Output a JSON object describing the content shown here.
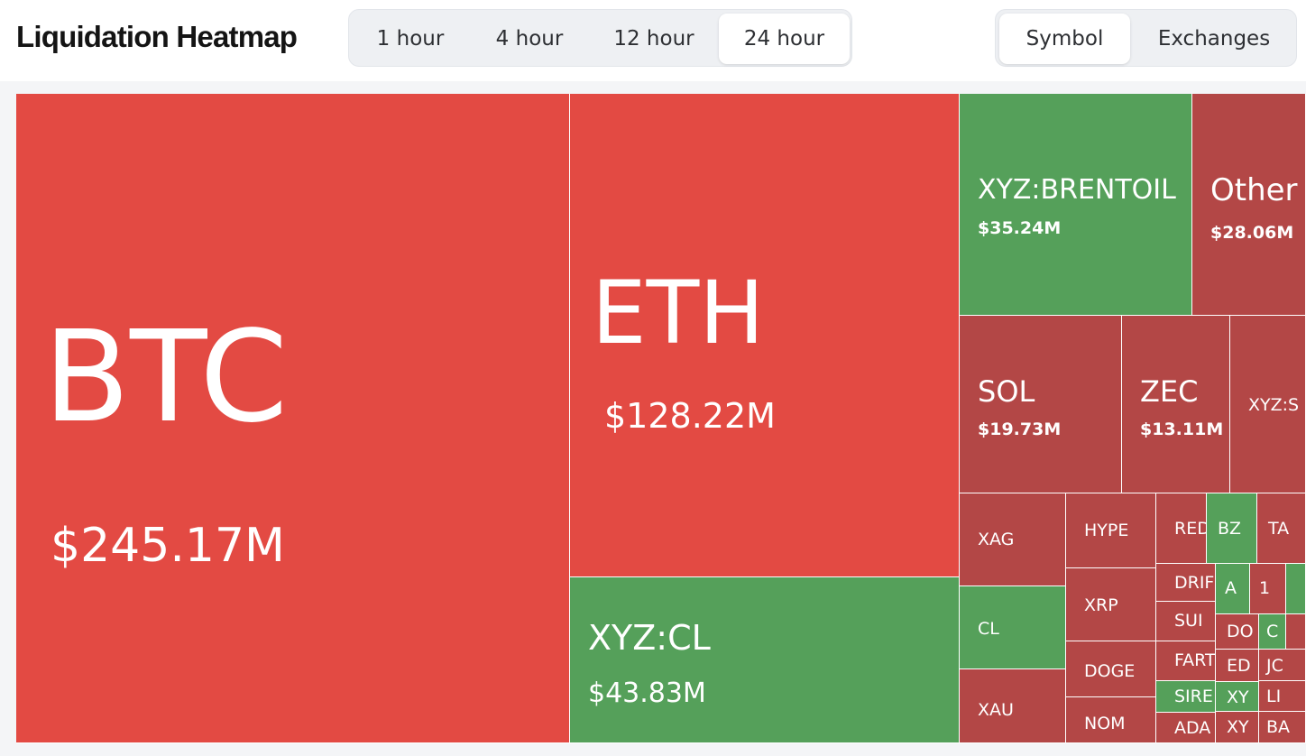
{
  "header": {
    "title": "Liquidation Heatmap"
  },
  "time_tabs": [
    {
      "label": "1 hour",
      "active": false
    },
    {
      "label": "4 hour",
      "active": false
    },
    {
      "label": "12 hour",
      "active": false
    },
    {
      "label": "24 hour",
      "active": true
    }
  ],
  "view_tabs": [
    {
      "label": "Symbol",
      "active": true
    },
    {
      "label": "Exchanges",
      "active": false
    }
  ],
  "colors": {
    "long": "#e34a43",
    "short": "#55a05a",
    "mixed": "#b34746"
  },
  "chart_data": {
    "type": "treemap",
    "unit": "USD",
    "tiles": [
      {
        "symbol": "BTC",
        "value_label": "$245.17M",
        "value": 245170000,
        "color": "long"
      },
      {
        "symbol": "ETH",
        "value_label": "$128.22M",
        "value": 128220000,
        "color": "long"
      },
      {
        "symbol": "XYZ:CL",
        "value_label": "$43.83M",
        "value": 43830000,
        "color": "short"
      },
      {
        "symbol": "XYZ:BRENTOIL",
        "value_label": "$35.24M",
        "value": 35240000,
        "color": "short"
      },
      {
        "symbol": "Other",
        "value_label": "$28.06M",
        "value": 28060000,
        "color": "mixed"
      },
      {
        "symbol": "SOL",
        "value_label": "$19.73M",
        "value": 19730000,
        "color": "mixed"
      },
      {
        "symbol": "ZEC",
        "value_label": "$13.11M",
        "value": 13110000,
        "color": "mixed"
      },
      {
        "symbol": "XYZ:S",
        "value_label": "",
        "color": "mixed"
      },
      {
        "symbol": "XAG",
        "value_label": "",
        "color": "mixed"
      },
      {
        "symbol": "CL",
        "value_label": "",
        "color": "short"
      },
      {
        "symbol": "XAU",
        "value_label": "",
        "color": "mixed"
      },
      {
        "symbol": "HYPE",
        "value_label": "",
        "color": "mixed"
      },
      {
        "symbol": "XRP",
        "value_label": "",
        "color": "mixed"
      },
      {
        "symbol": "DOGE",
        "value_label": "",
        "color": "mixed"
      },
      {
        "symbol": "NOM",
        "value_label": "",
        "color": "mixed"
      },
      {
        "symbol": "RED",
        "value_label": "",
        "color": "mixed"
      },
      {
        "symbol": "BZ",
        "value_label": "",
        "color": "short"
      },
      {
        "symbol": "TA",
        "value_label": "",
        "color": "mixed"
      },
      {
        "symbol": "DRIF",
        "value_label": "",
        "color": "mixed"
      },
      {
        "symbol": "A",
        "value_label": "",
        "color": "short"
      },
      {
        "symbol": "1",
        "value_label": "",
        "color": "mixed"
      },
      {
        "symbol": "",
        "value_label": "",
        "color": "short"
      },
      {
        "symbol": "SUI",
        "value_label": "",
        "color": "mixed"
      },
      {
        "symbol": "DO",
        "value_label": "",
        "color": "mixed"
      },
      {
        "symbol": "C",
        "value_label": "",
        "color": "short"
      },
      {
        "symbol": "",
        "value_label": "",
        "color": "mixed"
      },
      {
        "symbol": "FART",
        "value_label": "",
        "color": "mixed"
      },
      {
        "symbol": "ED",
        "value_label": "",
        "color": "mixed"
      },
      {
        "symbol": "JC",
        "value_label": "",
        "color": "mixed"
      },
      {
        "symbol": "SIRE",
        "value_label": "",
        "color": "short"
      },
      {
        "symbol": "XY",
        "value_label": "",
        "color": "short"
      },
      {
        "symbol": "LI",
        "value_label": "",
        "color": "mixed"
      },
      {
        "symbol": "ADA",
        "value_label": "",
        "color": "mixed"
      },
      {
        "symbol": "XY",
        "value_label": "",
        "color": "mixed"
      },
      {
        "symbol": "BA",
        "value_label": "",
        "color": "mixed"
      }
    ]
  }
}
